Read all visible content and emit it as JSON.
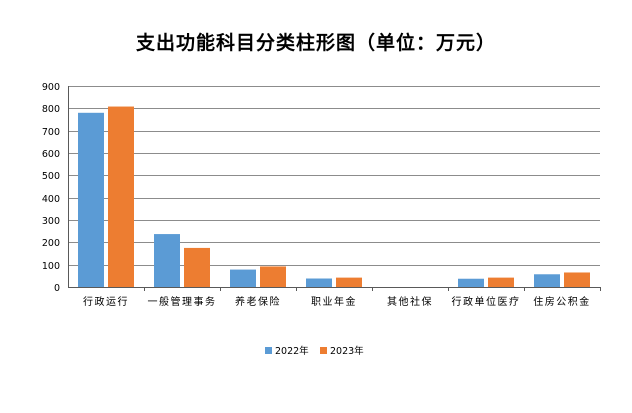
{
  "chart_data": {
    "type": "bar",
    "title": "支出功能科目分类柱形图（单位：万元）",
    "categories": [
      "行政运行",
      "一般管理事务",
      "养老保险",
      "职业年金",
      "其他社保",
      "行政单位医疗",
      "住房公积金"
    ],
    "series": [
      {
        "name": "2022年",
        "color": "#5b9bd5",
        "values": [
          780,
          237,
          78,
          38,
          0,
          37,
          57
        ]
      },
      {
        "name": "2023年",
        "color": "#ed7d31",
        "values": [
          808,
          175,
          92,
          42,
          0,
          42,
          65
        ]
      }
    ],
    "ylim": [
      0,
      900
    ],
    "yticks": [
      0,
      100,
      200,
      300,
      400,
      500,
      600,
      700,
      800,
      900
    ],
    "grid": true,
    "legend_position": "bottom"
  }
}
